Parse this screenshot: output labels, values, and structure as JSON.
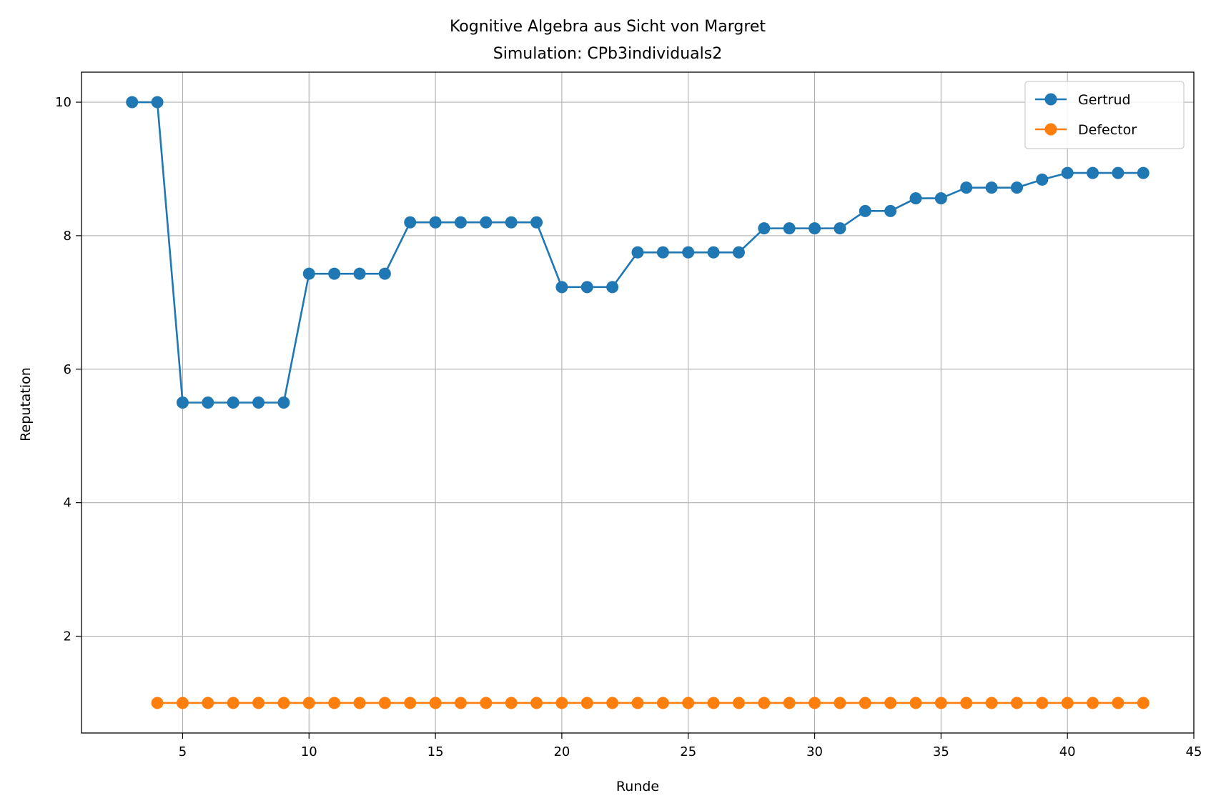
{
  "chart_data": {
    "type": "line",
    "title": "Kognitive Algebra aus Sicht von Margret",
    "subtitle": "Simulation: CPb3individuals2",
    "xlabel": "Runde",
    "ylabel": "Reputation",
    "xlim": [
      1,
      45
    ],
    "ylim": [
      0.55,
      10.45
    ],
    "xticks": [
      5,
      10,
      15,
      20,
      25,
      30,
      35,
      40,
      45
    ],
    "yticks": [
      2,
      4,
      6,
      8,
      10
    ],
    "grid": true,
    "legend_position": "top-right",
    "series": [
      {
        "name": "Gertrud",
        "color": "#1f77b4",
        "marker": "circle",
        "x": [
          3,
          4,
          5,
          6,
          7,
          8,
          9,
          10,
          11,
          12,
          13,
          14,
          15,
          16,
          17,
          18,
          19,
          20,
          21,
          22,
          23,
          24,
          25,
          26,
          27,
          28,
          29,
          30,
          31,
          32,
          33,
          34,
          35,
          36,
          37,
          38,
          39,
          40,
          41,
          42,
          43
        ],
        "y": [
          10,
          10,
          5.5,
          5.5,
          5.5,
          5.5,
          5.5,
          7.43,
          7.43,
          7.43,
          7.43,
          8.2,
          8.2,
          8.2,
          8.2,
          8.2,
          8.2,
          7.23,
          7.23,
          7.23,
          7.75,
          7.75,
          7.75,
          7.75,
          7.75,
          8.11,
          8.11,
          8.11,
          8.11,
          8.37,
          8.37,
          8.56,
          8.56,
          8.72,
          8.72,
          8.72,
          8.84,
          8.94,
          8.94,
          8.94,
          8.94
        ]
      },
      {
        "name": "Defector",
        "color": "#ff7f0e",
        "marker": "circle",
        "x": [
          4,
          5,
          6,
          7,
          8,
          9,
          10,
          11,
          12,
          13,
          14,
          15,
          16,
          17,
          18,
          19,
          20,
          21,
          22,
          23,
          24,
          25,
          26,
          27,
          28,
          29,
          30,
          31,
          32,
          33,
          34,
          35,
          36,
          37,
          38,
          39,
          40,
          41,
          42,
          43
        ],
        "y": [
          1,
          1,
          1,
          1,
          1,
          1,
          1,
          1,
          1,
          1,
          1,
          1,
          1,
          1,
          1,
          1,
          1,
          1,
          1,
          1,
          1,
          1,
          1,
          1,
          1,
          1,
          1,
          1,
          1,
          1,
          1,
          1,
          1,
          1,
          1,
          1,
          1,
          1,
          1,
          1
        ]
      }
    ]
  }
}
